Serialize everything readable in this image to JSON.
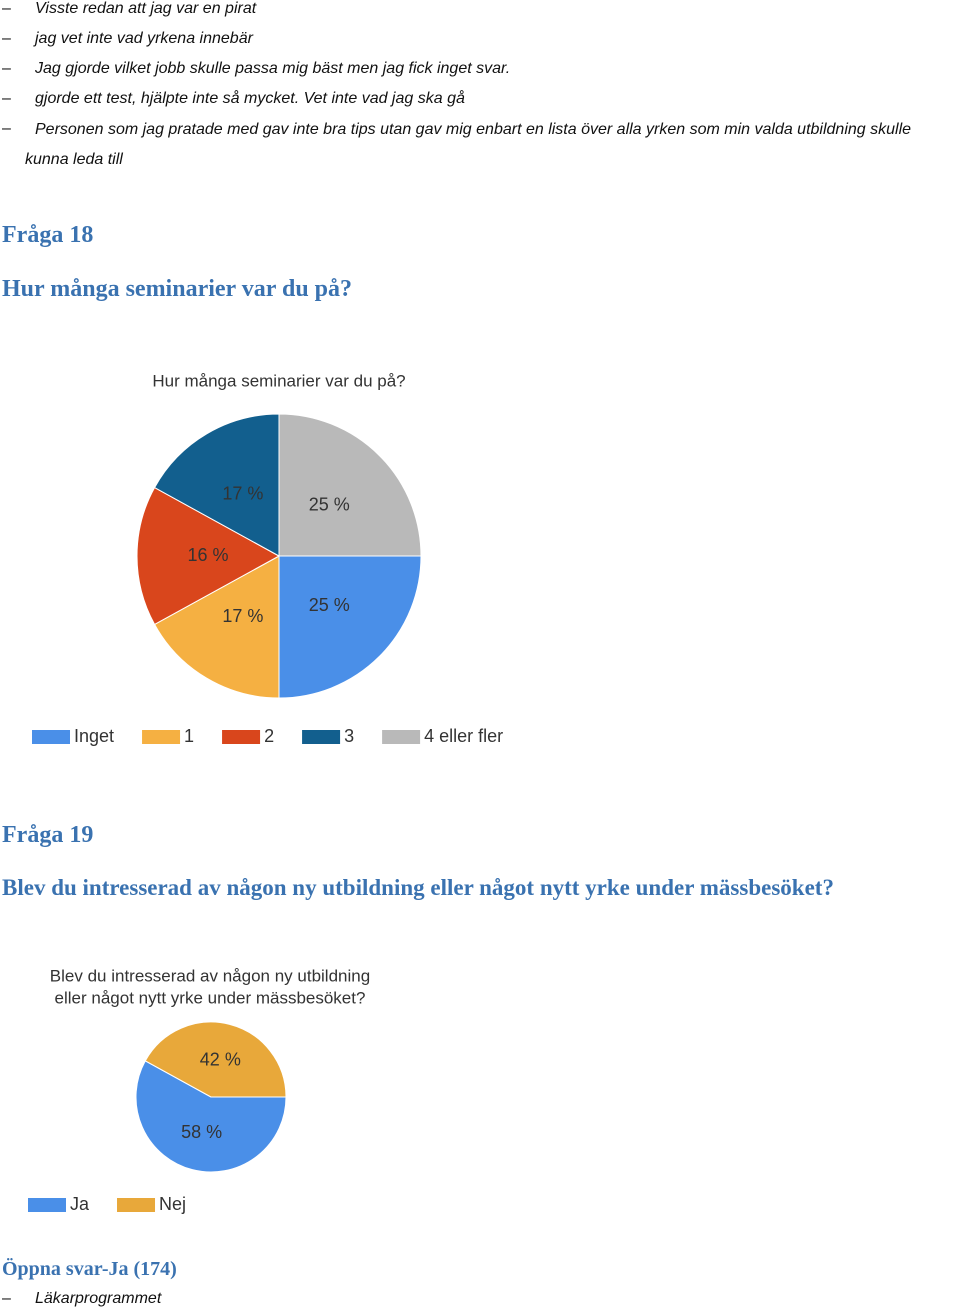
{
  "document": {
    "bullets_top": [
      "Visste redan att jag var en pirat",
      "jag vet inte vad yrkena innebär",
      "Jag gjorde vilket jobb skulle passa mig bäst men jag fick inget svar.",
      "gjorde ett test, hjälpte inte så mycket. Vet inte vad jag ska gå",
      "Personen som jag pratade med gav inte bra tips utan gav mig enbart en lista över alla yrken som min valda utbildning skulle kunna leda till"
    ],
    "section_18": {
      "heading": "Fråga 18",
      "question": "Hur många seminarier var du på?"
    },
    "section_19": {
      "heading": "Fråga 19",
      "question": "Blev du intresserad av någon ny utbildning eller något nytt yrke under mässbesöket?"
    },
    "open_answers": {
      "heading": "Öppna svar-Ja (174)",
      "bullets": [
        "Läkarprogrammet"
      ]
    }
  },
  "chart_data": [
    {
      "type": "pie",
      "title": [
        "Hur många seminarier var du på?"
      ],
      "categories": [
        "Inget",
        "1",
        "2",
        "3",
        "4 eller fler"
      ],
      "values": [
        25,
        17,
        16,
        17,
        25
      ],
      "value_labels": [
        "25 %",
        "17 %",
        "16 %",
        "17 %",
        "25 %"
      ],
      "colors": [
        "#4a8fe8",
        "#f5b042",
        "#d9461c",
        "#125f8e",
        "#b9b9b9"
      ]
    },
    {
      "type": "pie",
      "title": [
        "Blev du intresserad av någon ny utbildning",
        "eller något nytt yrke under mässbesöket?"
      ],
      "categories": [
        "Ja",
        "Nej"
      ],
      "values": [
        58,
        42
      ],
      "value_labels": [
        "58 %",
        "42 %"
      ],
      "colors": [
        "#4a8fe8",
        "#e8a83a"
      ]
    }
  ]
}
